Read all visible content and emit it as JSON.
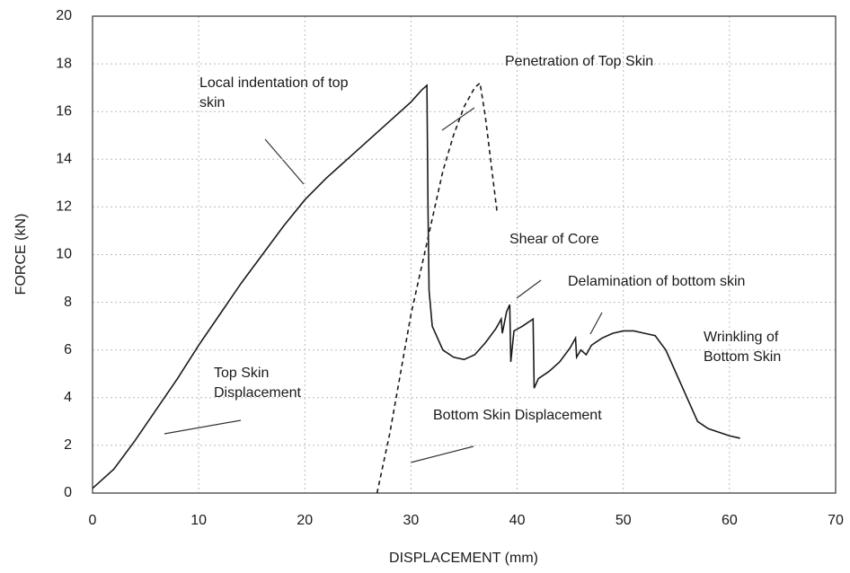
{
  "chart_data": {
    "type": "line",
    "xlabel": "DISPLACEMENT (mm)",
    "ylabel": "FORCE (kN)",
    "xlim": [
      0,
      70
    ],
    "xticks": [
      0,
      10,
      20,
      30,
      40,
      50,
      60,
      70
    ],
    "ylim": [
      0,
      20
    ],
    "yticks": [
      0,
      2,
      4,
      6,
      8,
      10,
      12,
      14,
      16,
      18,
      20
    ],
    "grid": true,
    "series": [
      {
        "name": "Top Skin Displacement",
        "color": "#1a1a1a",
        "line_style": "solid",
        "x": [
          0,
          2,
          4,
          6,
          8,
          10,
          12,
          14,
          16,
          18,
          20,
          22,
          24,
          26,
          28,
          30,
          31,
          31.5,
          31.6,
          31.7,
          32,
          33,
          34,
          35,
          36,
          37,
          38,
          38.5,
          38.6,
          39,
          39.3,
          39.4,
          39.7,
          40.5,
          41.5,
          41.6,
          42,
          43,
          44,
          45,
          45.5,
          45.6,
          46,
          46.5,
          47,
          48,
          49,
          50,
          51,
          52,
          53,
          54,
          55,
          56,
          57,
          58,
          60,
          61
        ],
        "values": [
          0.2,
          1,
          2.2,
          3.5,
          4.8,
          6.2,
          7.5,
          8.8,
          10,
          11.2,
          12.3,
          13.2,
          14,
          14.8,
          15.6,
          16.4,
          16.9,
          17.1,
          12,
          8.5,
          7,
          6,
          5.7,
          5.6,
          5.8,
          6.3,
          6.9,
          7.3,
          6.7,
          7.6,
          7.9,
          5.5,
          6.8,
          7,
          7.3,
          4.4,
          4.8,
          5.1,
          5.5,
          6.1,
          6.5,
          5.7,
          6,
          5.8,
          6.2,
          6.5,
          6.7,
          6.8,
          6.8,
          6.7,
          6.6,
          6,
          5,
          4,
          3,
          2.7,
          2.4,
          2.3
        ]
      },
      {
        "name": "Bottom Skin Displacement",
        "color": "#1a1a1a",
        "line_style": "dashed",
        "x": [
          26.8,
          28,
          29,
          30,
          31,
          32,
          33,
          34,
          35,
          36,
          36.5,
          37,
          38.1
        ],
        "values": [
          0,
          2.5,
          5,
          7.5,
          9.5,
          11.5,
          13.5,
          15,
          16.2,
          17,
          17.2,
          15.8,
          11.8
        ]
      }
    ],
    "annotations": [
      "Local indentation of top skin",
      "Penetration of Top Skin",
      "Shear of Core",
      "Delamination of bottom skin",
      "Wrinkling of Bottom Skin"
    ]
  }
}
